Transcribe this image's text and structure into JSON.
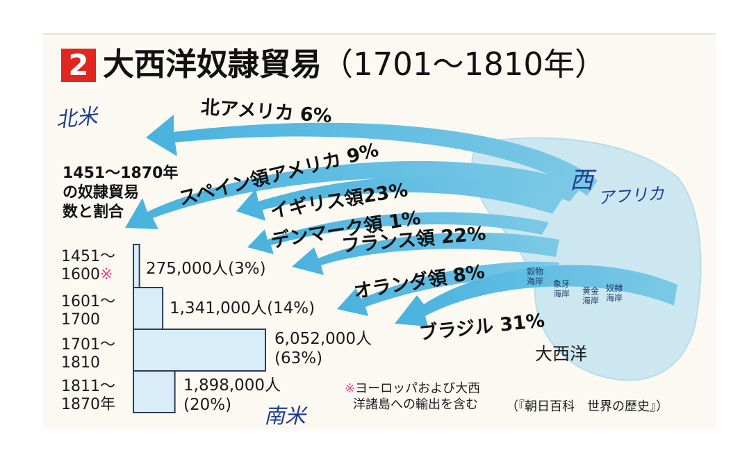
{
  "figure": {
    "number": "2",
    "title": "大西洋奴隷貿易",
    "title_range": "（1701～1810年）"
  },
  "flows": [
    {
      "label": "北アメリカ 6%",
      "share_percent": 6
    },
    {
      "label": "スペイン領アメリカ 9%",
      "share_percent": 9
    },
    {
      "label": "イギリス領23%",
      "share_percent": 23
    },
    {
      "label": "デンマーク領 1%",
      "share_percent": 1
    },
    {
      "label": "フランス領 22%",
      "share_percent": 22
    },
    {
      "label": "オランダ領 8%",
      "share_percent": 8
    },
    {
      "label": "ブラジル 31%",
      "share_percent": 31
    }
  ],
  "africa_regions": [
    {
      "line1": "穀物",
      "line2": "海岸"
    },
    {
      "line1": "象牙",
      "line2": "海岸"
    },
    {
      "line1": "黄金",
      "line2": "海岸"
    },
    {
      "line1": "奴隷",
      "line2": "海岸"
    }
  ],
  "ocean_label": "大西洋",
  "side_heading": {
    "line1": "1451～1870年",
    "line2": "の奴隷貿易",
    "line3": "数と割合"
  },
  "chart_data": {
    "type": "bar",
    "orientation": "horizontal",
    "categories": [
      "1451～1600",
      "1601～1700",
      "1701～1810",
      "1811～1870"
    ],
    "values": [
      275000,
      1341000,
      6052000,
      1898000
    ],
    "percents": [
      3,
      14,
      63,
      20
    ],
    "value_labels": [
      "275,000人",
      "1,341,000人",
      "6,052,000人",
      "1,898,000人"
    ],
    "percent_labels": [
      "(3%)",
      "(14%)",
      "(63%)",
      "(20%)"
    ],
    "title": "1451～1870年の奴隷貿易数と割合",
    "xlim": [
      0,
      6052000
    ]
  },
  "periods": [
    {
      "line1": "1451～",
      "line2": "1600",
      "mark": "※"
    },
    {
      "line1": "1601～",
      "line2": "1700",
      "mark": ""
    },
    {
      "line1": "1701～",
      "line2": "1810",
      "mark": ""
    },
    {
      "line1": "1811～",
      "line2": "1870年",
      "mark": ""
    }
  ],
  "note": {
    "mark": "※",
    "line1": "ヨーロッパおよび大西",
    "line2": "洋諸島への輸出を含む"
  },
  "source": "（『朝日百科　世界の歴史』）",
  "handwritten": {
    "north_america": "北米",
    "west_africa_1": "西",
    "west_africa_2": "アフリカ",
    "south_america": "南米"
  },
  "colors": {
    "badge": "#e0261e",
    "arrow_fill": "#5fbfe3",
    "land_fill": "#cde7f1",
    "bar_fill": "#d8edf7",
    "bar_stroke": "#2b3a5a",
    "note_mark": "#e0479c",
    "handwriting": "#1d3c8f"
  }
}
